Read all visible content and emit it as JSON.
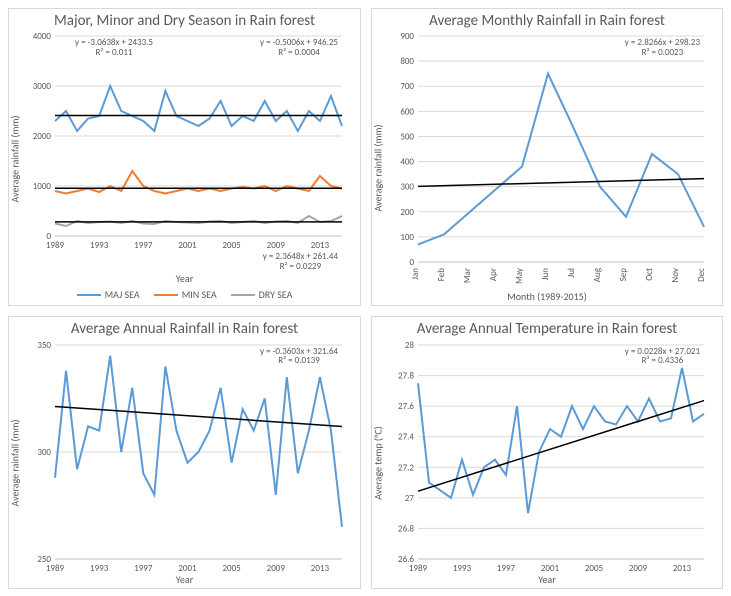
{
  "background_color": "#ffffff",
  "panel_border_color": "#d9d9d9",
  "text_color": "#595959",
  "grid_color": "#d9d9d9",
  "trend_color": "#000000",
  "panels": {
    "A": {
      "title": "Major, Minor and Dry Season in Rain forest",
      "type": "line",
      "ylabel": "Average rainfall (mm)",
      "xlabel": "Year",
      "ylim": [
        0,
        4000
      ],
      "ytick_step": 1000,
      "x_categories": [
        "1989",
        "1993",
        "1997",
        "2001",
        "2005",
        "2009",
        "2013"
      ],
      "x_label_every": 4,
      "years": [
        1989,
        1990,
        1991,
        1992,
        1993,
        1994,
        1995,
        1996,
        1997,
        1998,
        1999,
        2000,
        2001,
        2002,
        2003,
        2004,
        2005,
        2006,
        2007,
        2008,
        2009,
        2010,
        2011,
        2012,
        2013,
        2014,
        2015
      ],
      "series": [
        {
          "name": "MAJ SEA",
          "color": "#5b9bd5",
          "values": [
            2300,
            2500,
            2100,
            2350,
            2400,
            3000,
            2500,
            2400,
            2300,
            2100,
            2900,
            2400,
            2300,
            2200,
            2350,
            2700,
            2200,
            2400,
            2300,
            2700,
            2300,
            2500,
            2100,
            2500,
            2300,
            2800,
            2200
          ]
        },
        {
          "name": "MIN SEA",
          "color": "#ed7d31",
          "values": [
            900,
            850,
            900,
            950,
            880,
            1000,
            900,
            1300,
            1000,
            900,
            850,
            900,
            950,
            900,
            950,
            900,
            950,
            980,
            950,
            1000,
            900,
            1000,
            950,
            900,
            1200,
            1000,
            950
          ]
        },
        {
          "name": "DRY SEA",
          "color": "#a5a5a5",
          "values": [
            250,
            200,
            300,
            260,
            280,
            290,
            260,
            300,
            250,
            240,
            300,
            280,
            270,
            260,
            290,
            300,
            260,
            280,
            300,
            260,
            290,
            300,
            260,
            400,
            280,
            300,
            400
          ]
        }
      ],
      "equations": [
        {
          "text": "y = -3.0638x + 2433.5",
          "r2": "R² = 0.011",
          "pos": "tl"
        },
        {
          "text": "y = -0.5006x + 946.25",
          "r2": "R² = 0.0004",
          "pos": "tr"
        },
        {
          "text": "y = 2.3648x + 261.44",
          "r2": "R² = 0.0229",
          "pos": "br"
        }
      ],
      "legend": true
    },
    "B": {
      "title": "Average Monthly Rainfall in Rain forest",
      "type": "line",
      "ylabel": "Average rainfall (mm)",
      "xlabel": "Month (1989-2015)",
      "ylim": [
        0,
        900
      ],
      "ytick_step": 100,
      "x_categories": [
        "Jan",
        "Feb",
        "Mar",
        "Apr",
        "May",
        "Jun",
        "Jul",
        "Aug",
        "Sep",
        "Oct",
        "Nov",
        "Dec"
      ],
      "x_rotate": true,
      "series": [
        {
          "name": "Monthly",
          "color": "#5b9bd5",
          "values": [
            70,
            110,
            200,
            290,
            380,
            750,
            530,
            300,
            180,
            430,
            350,
            140
          ]
        }
      ],
      "trend": {
        "m": 2.8266,
        "b": 298.23
      },
      "equations": [
        {
          "text": "y = 2.8266x + 298.23",
          "r2": "R² = 0.0023",
          "pos": "tr"
        }
      ]
    },
    "C": {
      "title": "Average Annual Rainfall in Rain forest",
      "type": "line",
      "ylabel": "Average rainfall (mm)",
      "xlabel": "Year",
      "ylim": [
        250,
        350
      ],
      "ytick_step": 50,
      "x_categories": [
        "1989",
        "1993",
        "1997",
        "2001",
        "2005",
        "2009",
        "2013"
      ],
      "x_label_every": 4,
      "years": [
        1989,
        1990,
        1991,
        1992,
        1993,
        1994,
        1995,
        1996,
        1997,
        1998,
        1999,
        2000,
        2001,
        2002,
        2003,
        2004,
        2005,
        2006,
        2007,
        2008,
        2009,
        2010,
        2011,
        2012,
        2013,
        2014,
        2015
      ],
      "series": [
        {
          "name": "Annual",
          "color": "#5b9bd5",
          "values": [
            288,
            338,
            292,
            312,
            310,
            345,
            300,
            330,
            290,
            280,
            340,
            310,
            295,
            300,
            310,
            330,
            295,
            320,
            310,
            325,
            280,
            335,
            290,
            310,
            335,
            310,
            265
          ]
        }
      ],
      "trend": {
        "m": -0.3603,
        "b": 321.64
      },
      "equations": [
        {
          "text": "y = -0.3603x + 321.64",
          "r2": "R² = 0.0139",
          "pos": "tr"
        }
      ]
    },
    "D": {
      "title": "Average Annual Temperature in Rain forest",
      "type": "line",
      "ylabel": "Average temp (°C)",
      "xlabel": "Year",
      "ylim": [
        26.6,
        28.0
      ],
      "ytick_step": 0.2,
      "x_categories": [
        "1989",
        "1993",
        "1997",
        "2001",
        "2005",
        "2009",
        "2013"
      ],
      "x_label_every": 4,
      "years": [
        1989,
        1990,
        1991,
        1992,
        1993,
        1994,
        1995,
        1996,
        1997,
        1998,
        1999,
        2000,
        2001,
        2002,
        2003,
        2004,
        2005,
        2006,
        2007,
        2008,
        2009,
        2010,
        2011,
        2012,
        2013,
        2014,
        2015
      ],
      "series": [
        {
          "name": "Temp",
          "color": "#5b9bd5",
          "values": [
            27.75,
            27.1,
            27.05,
            27.0,
            27.25,
            27.02,
            27.2,
            27.25,
            27.15,
            27.6,
            26.9,
            27.3,
            27.45,
            27.4,
            27.6,
            27.45,
            27.6,
            27.5,
            27.48,
            27.6,
            27.5,
            27.65,
            27.5,
            27.52,
            27.85,
            27.5,
            27.55
          ]
        }
      ],
      "trend": {
        "m": 0.0228,
        "b": 27.021
      },
      "equations": [
        {
          "text": "y = 0.0228x + 27.021",
          "r2": "R² = 0.4336",
          "pos": "tr"
        }
      ]
    }
  },
  "title_fontsize": 15,
  "axis_fontsize": 9,
  "label_fontsize": 10,
  "line_width": 2
}
